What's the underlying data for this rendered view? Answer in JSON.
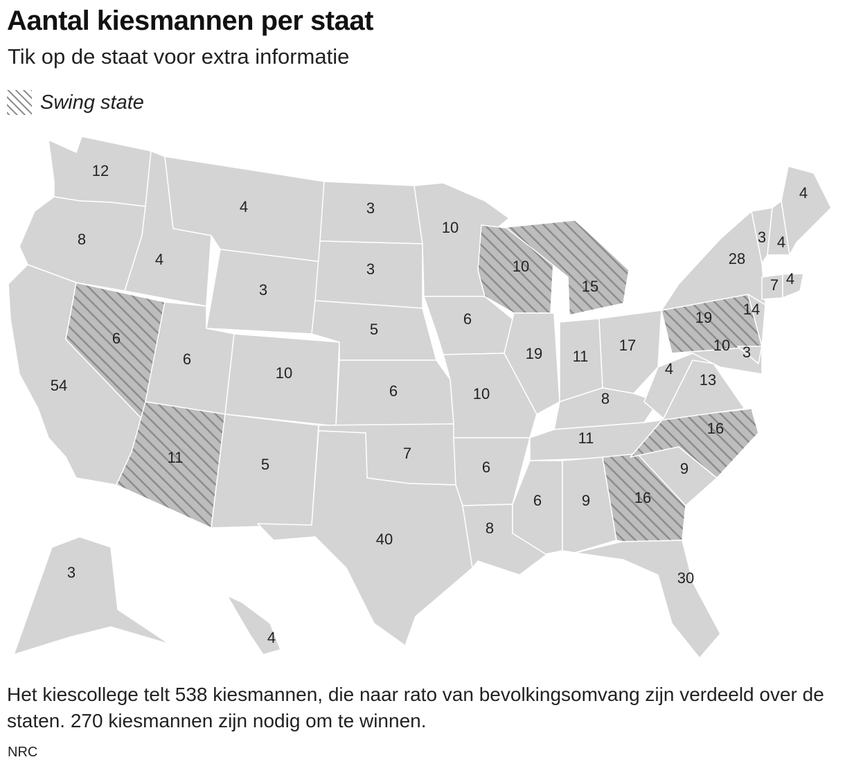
{
  "title": "Aantal kiesmannen per staat",
  "subtitle": "Tik op de staat voor extra informatie",
  "legend": {
    "swing_label": "Swing state"
  },
  "colors": {
    "state_fill": "#d4d4d4",
    "state_border": "#ffffff",
    "swing_fill": "#b8b8b8",
    "swing_hatch": "#8a8a8a"
  },
  "states": [
    {
      "id": "WA",
      "votes": "12",
      "swing": false
    },
    {
      "id": "OR",
      "votes": "8",
      "swing": false
    },
    {
      "id": "CA",
      "votes": "54",
      "swing": false
    },
    {
      "id": "NV",
      "votes": "6",
      "swing": true
    },
    {
      "id": "ID",
      "votes": "4",
      "swing": false
    },
    {
      "id": "MT",
      "votes": "4",
      "swing": false
    },
    {
      "id": "WY",
      "votes": "3",
      "swing": false
    },
    {
      "id": "UT",
      "votes": "6",
      "swing": false
    },
    {
      "id": "AZ",
      "votes": "11",
      "swing": true
    },
    {
      "id": "CO",
      "votes": "10",
      "swing": false
    },
    {
      "id": "NM",
      "votes": "5",
      "swing": false
    },
    {
      "id": "ND",
      "votes": "3",
      "swing": false
    },
    {
      "id": "SD",
      "votes": "3",
      "swing": false
    },
    {
      "id": "NE",
      "votes": "5",
      "swing": false
    },
    {
      "id": "KS",
      "votes": "6",
      "swing": false
    },
    {
      "id": "OK",
      "votes": "7",
      "swing": false
    },
    {
      "id": "TX",
      "votes": "40",
      "swing": false
    },
    {
      "id": "MN",
      "votes": "10",
      "swing": false
    },
    {
      "id": "IA",
      "votes": "6",
      "swing": false
    },
    {
      "id": "MO",
      "votes": "10",
      "swing": false
    },
    {
      "id": "AR",
      "votes": "6",
      "swing": false
    },
    {
      "id": "LA",
      "votes": "8",
      "swing": false
    },
    {
      "id": "WI",
      "votes": "10",
      "swing": true
    },
    {
      "id": "IL",
      "votes": "19",
      "swing": false
    },
    {
      "id": "MI",
      "votes": "15",
      "swing": true
    },
    {
      "id": "IN",
      "votes": "11",
      "swing": false
    },
    {
      "id": "OH",
      "votes": "17",
      "swing": false
    },
    {
      "id": "KY",
      "votes": "8",
      "swing": false
    },
    {
      "id": "TN",
      "votes": "11",
      "swing": false
    },
    {
      "id": "MS",
      "votes": "6",
      "swing": false
    },
    {
      "id": "AL",
      "votes": "9",
      "swing": false
    },
    {
      "id": "GA",
      "votes": "16",
      "swing": true
    },
    {
      "id": "FL",
      "votes": "30",
      "swing": false
    },
    {
      "id": "SC",
      "votes": "9",
      "swing": false
    },
    {
      "id": "NC",
      "votes": "16",
      "swing": true
    },
    {
      "id": "VA",
      "votes": "13",
      "swing": false
    },
    {
      "id": "WV",
      "votes": "4",
      "swing": false
    },
    {
      "id": "PA",
      "votes": "19",
      "swing": true
    },
    {
      "id": "NY",
      "votes": "28",
      "swing": false
    },
    {
      "id": "NJ",
      "votes": "14",
      "swing": false
    },
    {
      "id": "MD",
      "votes": "10",
      "swing": false
    },
    {
      "id": "DE",
      "votes": "3",
      "swing": false
    },
    {
      "id": "VT",
      "votes": "3",
      "swing": false
    },
    {
      "id": "NH",
      "votes": "4",
      "swing": false
    },
    {
      "id": "ME",
      "votes": "4",
      "swing": false
    },
    {
      "id": "CT",
      "votes": "7",
      "swing": false
    },
    {
      "id": "RI",
      "votes": "4",
      "swing": false
    },
    {
      "id": "AK",
      "votes": "3",
      "swing": false
    },
    {
      "id": "HI",
      "votes": "4",
      "swing": false
    }
  ],
  "note": "Het kiescollege telt 538 kiesmannen, die naar rato van bevolkingsomvang zijn verdeeld over de staten. 270 kiesmannen zijn nodig om te winnen.",
  "source": "NRC"
}
